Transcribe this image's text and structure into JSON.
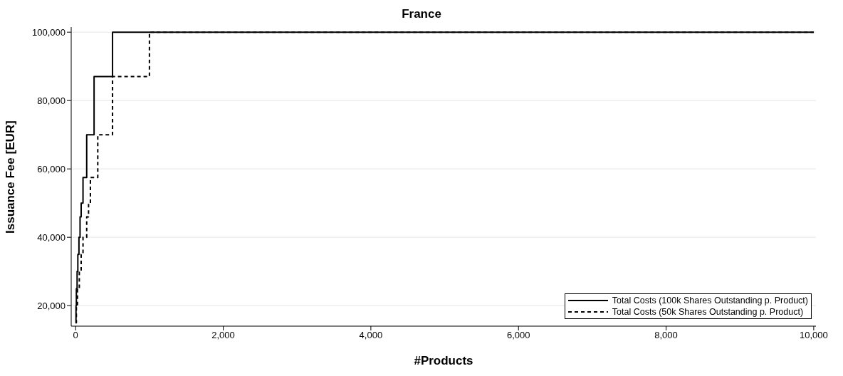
{
  "chart_data": {
    "type": "step",
    "title": "France",
    "xlabel": "#Products",
    "ylabel": "Issuance Fee [EUR]",
    "series": [
      {
        "name": "Total Costs (100k Shares Outstanding p. Product)",
        "color": "#000000",
        "line_style": "solid",
        "x": [
          0,
          5,
          10,
          20,
          30,
          45,
          60,
          75,
          100,
          150,
          250,
          500,
          10000
        ],
        "values": [
          15000,
          20000,
          25000,
          30000,
          35000,
          40000,
          46000,
          50000,
          57500,
          70000,
          87000,
          100000,
          100000
        ]
      },
      {
        "name": "Total Costs (50k Shares Outstanding p. Product)",
        "color": "#000000",
        "line_style": "dashed",
        "x": [
          0,
          10,
          25,
          50,
          75,
          100,
          150,
          175,
          200,
          300,
          500,
          1000,
          10000
        ],
        "values": [
          15000,
          20000,
          25000,
          30000,
          35000,
          40000,
          46000,
          50000,
          57500,
          70000,
          87000,
          100000,
          100000
        ]
      }
    ],
    "xlim": [
      -60,
      10030
    ],
    "xticks": [
      {
        "value": 0,
        "label": "0"
      },
      {
        "value": 2000,
        "label": "2,000"
      },
      {
        "value": 4000,
        "label": "4,000"
      },
      {
        "value": 6000,
        "label": "6,000"
      },
      {
        "value": 8000,
        "label": "8,000"
      },
      {
        "value": 10000,
        "label": "10,000"
      }
    ],
    "ylim": [
      14000,
      101500
    ],
    "yticks": [
      {
        "value": 20000,
        "label": "20,000"
      },
      {
        "value": 40000,
        "label": "40,000"
      },
      {
        "value": 60000,
        "label": "60,000"
      },
      {
        "value": 80000,
        "label": "80,000"
      },
      {
        "value": 100000,
        "label": "100,000"
      }
    ],
    "grid": "y",
    "legend": "bottom right"
  }
}
